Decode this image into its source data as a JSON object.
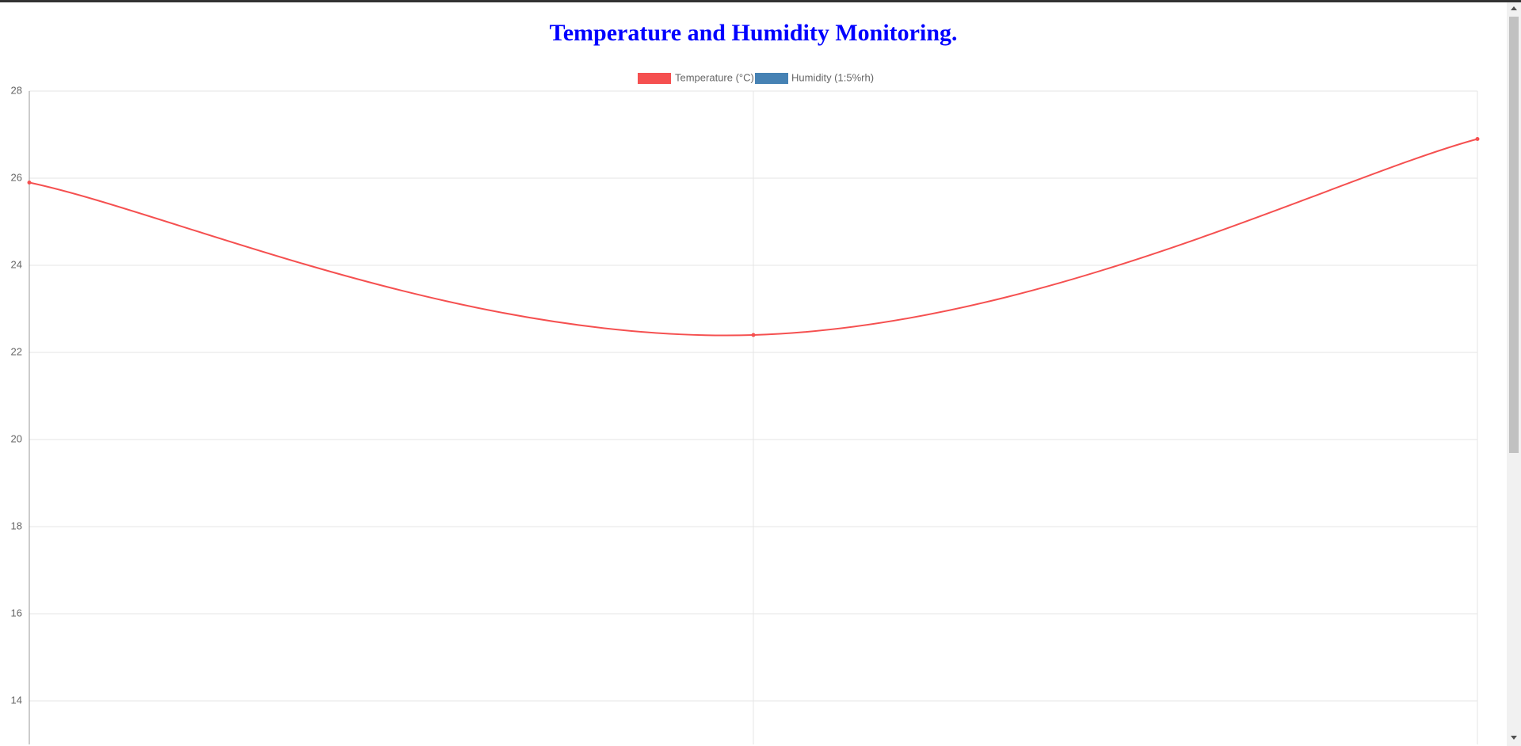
{
  "chart_data": {
    "type": "line",
    "title": "Temperature and Humidity Monitoring.",
    "categories": [
      null,
      null,
      null
    ],
    "series": [
      {
        "name": "Temperature (°C)",
        "color": "#f55050",
        "values": [
          25.9,
          22.4,
          26.9
        ]
      },
      {
        "name": "Humidity (1:5%rh)",
        "color": "#4682b4",
        "values": [
          null,
          null,
          null
        ]
      }
    ],
    "ylim": [
      13,
      28
    ],
    "yticks": [
      14,
      16,
      18,
      20,
      22,
      24,
      26,
      28
    ],
    "grid": true
  }
}
